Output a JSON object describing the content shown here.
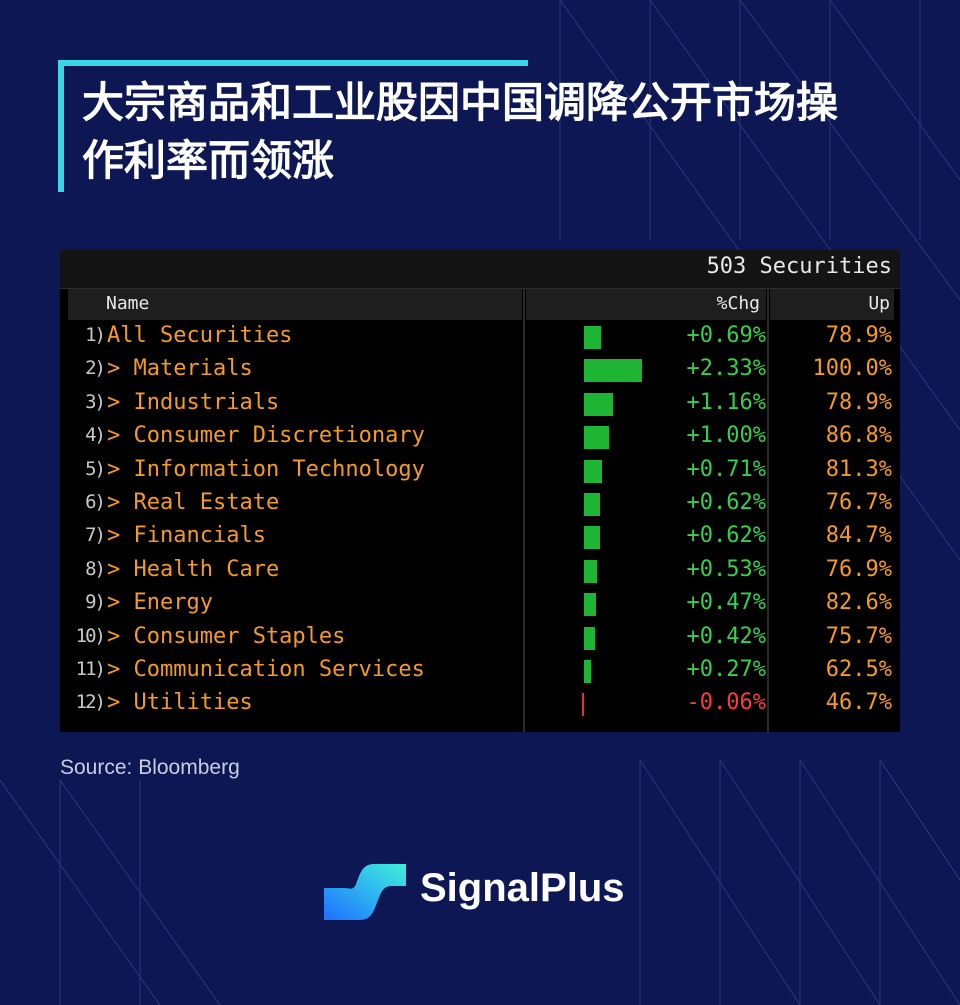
{
  "title": "大宗商品和工业股因中国调降公开市场操作利率而领涨",
  "source": "Source: Bloomberg",
  "brand": "SignalPlus",
  "colors": {
    "background": "#0d1754",
    "accent": "#3ad6e8",
    "positive": "#1fb534",
    "negative": "#e0303a",
    "label": "#f59a23"
  },
  "terminal": {
    "securities_count": "503 Securities",
    "columns": {
      "name": "Name",
      "chg": "%Chg",
      "up": "Up"
    }
  },
  "chart_data": {
    "type": "table",
    "columns": [
      "Name",
      "%Chg",
      "Up"
    ],
    "rows": [
      {
        "num": "1)",
        "name": "All Securities",
        "chg": "+0.69%",
        "chg_value": 0.69,
        "up": "78.9%"
      },
      {
        "num": "2)",
        "name": "> Materials",
        "chg": "+2.33%",
        "chg_value": 2.33,
        "up": "100.0%"
      },
      {
        "num": "3)",
        "name": "> Industrials",
        "chg": "+1.16%",
        "chg_value": 1.16,
        "up": "78.9%"
      },
      {
        "num": "4)",
        "name": "> Consumer Discretionary",
        "chg": "+1.00%",
        "chg_value": 1.0,
        "up": "86.8%"
      },
      {
        "num": "5)",
        "name": "> Information Technology",
        "chg": "+0.71%",
        "chg_value": 0.71,
        "up": "81.3%"
      },
      {
        "num": "6)",
        "name": "> Real Estate",
        "chg": "+0.62%",
        "chg_value": 0.62,
        "up": "76.7%"
      },
      {
        "num": "7)",
        "name": "> Financials",
        "chg": "+0.62%",
        "chg_value": 0.62,
        "up": "84.7%"
      },
      {
        "num": "8)",
        "name": "> Health Care",
        "chg": "+0.53%",
        "chg_value": 0.53,
        "up": "76.9%"
      },
      {
        "num": "9)",
        "name": "> Energy",
        "chg": "+0.47%",
        "chg_value": 0.47,
        "up": "82.6%"
      },
      {
        "num": "10)",
        "name": "> Consumer Staples",
        "chg": "+0.42%",
        "chg_value": 0.42,
        "up": "75.7%"
      },
      {
        "num": "11)",
        "name": "> Communication Services",
        "chg": "+0.27%",
        "chg_value": 0.27,
        "up": "62.5%"
      },
      {
        "num": "12)",
        "name": "> Utilities",
        "chg": "-0.06%",
        "chg_value": -0.06,
        "up": "46.7%"
      }
    ]
  }
}
